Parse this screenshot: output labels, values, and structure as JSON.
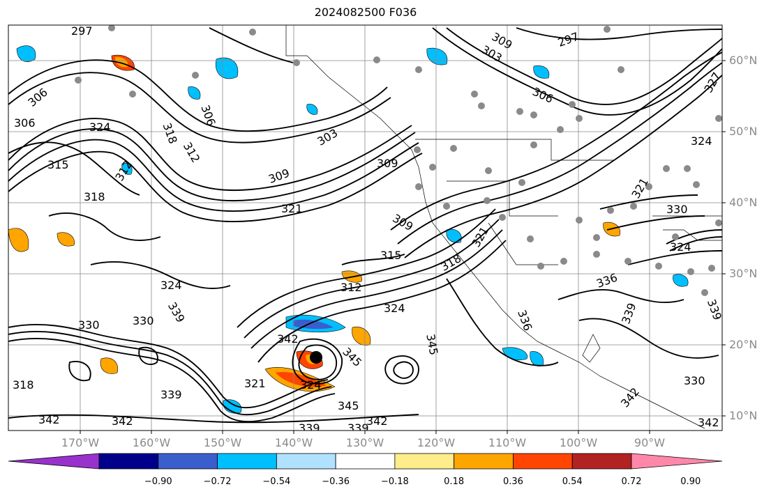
{
  "title": "2024082500 F036",
  "axes": {
    "lat_labels": [
      "60°N",
      "50°N",
      "40°N",
      "30°N",
      "20°N",
      "10°N"
    ],
    "lon_labels": [
      "170°W",
      "160°W",
      "150°W",
      "140°W",
      "130°W",
      "120°W",
      "110°W",
      "100°W",
      "90°W"
    ]
  },
  "colorbar": {
    "labels": [
      "−0.90",
      "−0.72",
      "−0.54",
      "−0.36",
      "−0.18",
      "0.18",
      "0.36",
      "0.54",
      "0.72",
      "0.90"
    ],
    "colors": [
      "#9932cc",
      "#00008b",
      "#3a5fcd",
      "#00bfff",
      "#b0e2ff",
      "#ffffff",
      "#ffec8b",
      "#ffa500",
      "#ff4500",
      "#b22222",
      "#ff88aa"
    ]
  },
  "contour_labels": [
    "297",
    "306",
    "306",
    "324",
    "315",
    "318",
    "318",
    "312",
    "306",
    "321",
    "303",
    "309",
    "309",
    "303",
    "297",
    "306",
    "312",
    "315",
    "318",
    "321",
    "309",
    "324",
    "324",
    "330",
    "330",
    "336",
    "339",
    "339",
    "342",
    "342",
    "342",
    "345",
    "345",
    "345",
    "339",
    "339",
    "342",
    "321",
    "324",
    "336",
    "339",
    "339",
    "342",
    "342",
    "330",
    "324",
    "327",
    "321",
    "330",
    "324",
    "309",
    "312",
    "318"
  ]
}
